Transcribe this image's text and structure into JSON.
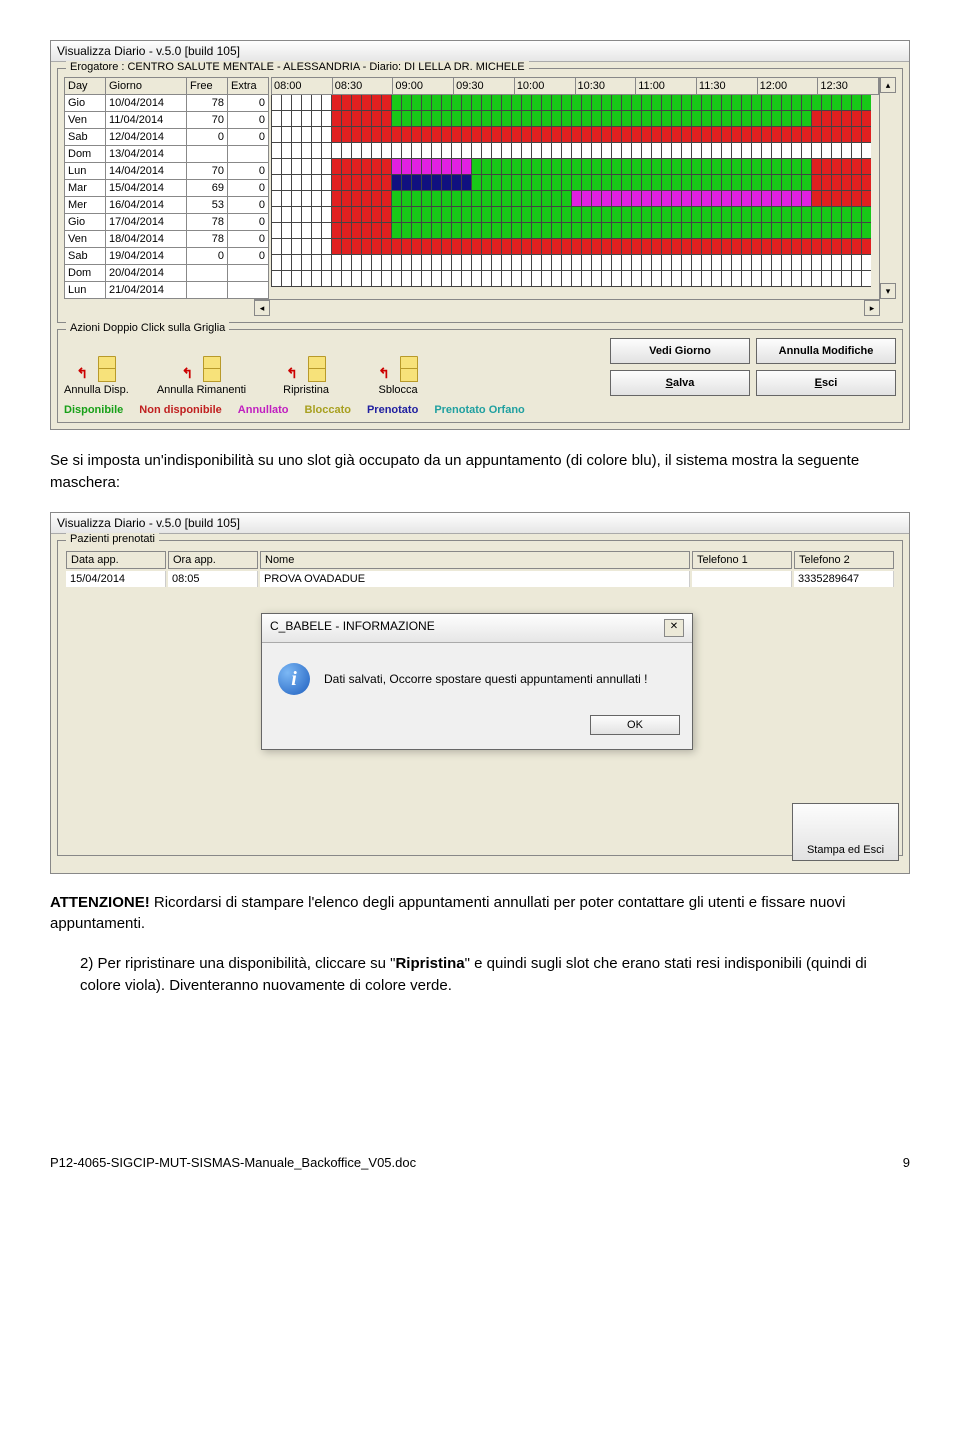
{
  "win1": {
    "title": "Visualizza Diario - v.5.0 [build 105]",
    "erogatore_label": "Erogatore : CENTRO SALUTE MENTALE - ALESSANDRIA  -  Diario: DI LELLA DR. MICHELE",
    "cols": {
      "day": "Day",
      "giorno": "Giorno",
      "free": "Free",
      "extra": "Extra"
    },
    "times": [
      "08:00",
      "08:30",
      "09:00",
      "09:30",
      "10:00",
      "10:30",
      "11:00",
      "11:30",
      "12:00",
      "12:30"
    ],
    "rows": [
      {
        "day": "Gio",
        "date": "10/04/2014",
        "free": "78",
        "extra": "0",
        "slots": "wwwwwwrrrrrrgggggggggggggggggggggggggggggggggggggggggggggggg"
      },
      {
        "day": "Ven",
        "date": "11/04/2014",
        "free": "70",
        "extra": "0",
        "slots": "wwwwwwrrrrrrggggggggggggggggggggggggggggggggggggggggggrrrrrr"
      },
      {
        "day": "Sab",
        "date": "12/04/2014",
        "free": "0",
        "extra": "0",
        "slots": "wwwwwwrrrrrrrrrrrrrrrrrrrrrrrrrrrrrrrrrrrrrrrrrrrrrrrrrrrrrr"
      },
      {
        "day": "Dom",
        "date": "13/04/2014",
        "free": "",
        "extra": "",
        "slots": "wwwwwwwwwwwwwwwwwwwwwwwwwwwwwwwwwwwwwwwwwwwwwwwwwwwwwwwwwwww"
      },
      {
        "day": "Lun",
        "date": "14/04/2014",
        "free": "70",
        "extra": "0",
        "slots": "wwwwwwrrrrrrmmmmmmmmggggggggggggggggggggggggggggggggggrrrrrr"
      },
      {
        "day": "Mar",
        "date": "15/04/2014",
        "free": "69",
        "extra": "0",
        "slots": "wwwwwwrrrrrrbbbbbbbbggggggggggggggggggggggggggggggggggrrrrrr"
      },
      {
        "day": "Mer",
        "date": "16/04/2014",
        "free": "53",
        "extra": "0",
        "slots": "wwwwwwrrrrrrggggggggggggggggggmmmmmmmmmmmmmmmmmmmmmmmmrrrrrr"
      },
      {
        "day": "Gio",
        "date": "17/04/2014",
        "free": "78",
        "extra": "0",
        "slots": "wwwwwwrrrrrrgggggggggggggggggggggggggggggggggggggggggggggggg"
      },
      {
        "day": "Ven",
        "date": "18/04/2014",
        "free": "78",
        "extra": "0",
        "slots": "wwwwwwrrrrrrgggggggggggggggggggggggggggggggggggggggggggggggg"
      },
      {
        "day": "Sab",
        "date": "19/04/2014",
        "free": "0",
        "extra": "0",
        "slots": "wwwwwwrrrrrrrrrrrrrrrrrrrrrrrrrrrrrrrrrrrrrrrrrrrrrrrrrrrrrr"
      },
      {
        "day": "Dom",
        "date": "20/04/2014",
        "free": "",
        "extra": "",
        "slots": "wwwwwwwwwwwwwwwwwwwwwwwwwwwwwwwwwwwwwwwwwwwwwwwwwwwwwwwwwwww"
      },
      {
        "day": "Lun",
        "date": "21/04/2014",
        "free": "",
        "extra": "",
        "slots": "wwwwwwwwwwwwwwwwwwwwwwwwwwwwwwwwwwwwwwwwwwwwwwwwwwwwwwwwwwww"
      }
    ],
    "actions_label": "Azioni Doppio Click sulla Griglia",
    "actions": [
      "Annulla Disp.",
      "Annulla Rimanenti",
      "Ripristina",
      "Sblocca"
    ],
    "buttons": {
      "vedi": "Vedi Giorno",
      "annulla": "Annulla Modifiche",
      "salva": "Salva",
      "esci": "Esci"
    },
    "legend": {
      "disponibile": {
        "text": "Disponibile",
        "color": "#18a018"
      },
      "nondisp": {
        "text": "Non disponibile",
        "color": "#c02020"
      },
      "annullato": {
        "text": "Annullato",
        "color": "#c020c0"
      },
      "bloccato": {
        "text": "Bloccato",
        "color": "#a8a020"
      },
      "prenotato": {
        "text": "Prenotato",
        "color": "#2020a0"
      },
      "orfano": {
        "text": "Prenotato Orfano",
        "color": "#20a0a0"
      }
    }
  },
  "para1": "Se si imposta un'indisponibilità su uno slot già occupato da un appuntamento (di colore blu), il sistema mostra la seguente maschera:",
  "win2": {
    "title": "Visualizza Diario - v.5.0 [build 105]",
    "section": "Pazienti prenotati",
    "cols": {
      "data": "Data app.",
      "ora": "Ora app.",
      "nome": "Nome",
      "tel1": "Telefono 1",
      "tel2": "Telefono 2"
    },
    "row": {
      "data": "15/04/2014",
      "ora": "08:05",
      "nome": "PROVA OVADADUE",
      "tel1": "",
      "tel2": "3335289647"
    },
    "dialog": {
      "title": "C_BABELE - INFORMAZIONE",
      "msg": "Dati salvati, Occorre spostare questi appuntamenti annullati !",
      "ok": "OK"
    },
    "print": "Stampa ed Esci"
  },
  "att_label": "ATTENZIONE!",
  "att_text": " Ricordarsi di stampare l'elenco degli appuntamenti annullati per poter contattare gli utenti e fissare nuovi appuntamenti.",
  "para2_a": "2)  Per ripristinare una disponibilità, cliccare su \"",
  "para2_b": "Ripristina",
  "para2_c": "\" e quindi sugli slot che erano stati resi indisponibili (quindi di colore viola). Diventeranno nuovamente di colore verde.",
  "footer_file": "P12-4065-SIGCIP-MUT-SISMAS-Manuale_Backoffice_V05.doc",
  "footer_page": "9"
}
